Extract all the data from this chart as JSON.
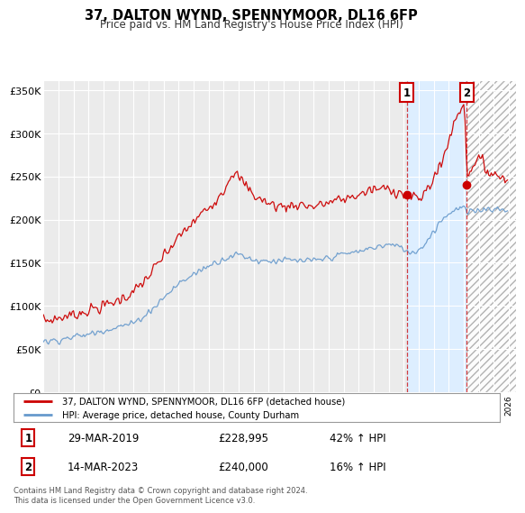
{
  "title": "37, DALTON WYND, SPENNYMOOR, DL16 6FP",
  "subtitle": "Price paid vs. HM Land Registry's House Price Index (HPI)",
  "legend_line1": "37, DALTON WYND, SPENNYMOOR, DL16 6FP (detached house)",
  "legend_line2": "HPI: Average price, detached house, County Durham",
  "transaction1_date": "29-MAR-2019",
  "transaction1_price": "£228,995",
  "transaction1_hpi": "42% ↑ HPI",
  "transaction2_date": "14-MAR-2023",
  "transaction2_price": "£240,000",
  "transaction2_hpi": "16% ↑ HPI",
  "footer": "Contains HM Land Registry data © Crown copyright and database right 2024.\nThis data is licensed under the Open Government Licence v3.0.",
  "ylim": [
    0,
    360000
  ],
  "yticks": [
    0,
    50000,
    100000,
    150000,
    200000,
    250000,
    300000,
    350000
  ],
  "ytick_labels": [
    "£0",
    "£50K",
    "£100K",
    "£150K",
    "£200K",
    "£250K",
    "£300K",
    "£350K"
  ],
  "xlim_start": 1995,
  "xlim_end": 2026.5,
  "background_color": "#ffffff",
  "plot_bg_color": "#ebebeb",
  "grid_color": "#ffffff",
  "red_color": "#cc0000",
  "blue_color": "#6699cc",
  "shade_color": "#ddeeff",
  "marker1_x": 2019.21,
  "marker1_y": 228995,
  "marker2_x": 2023.21,
  "marker2_y": 240000,
  "hatch_start": 2023.21
}
